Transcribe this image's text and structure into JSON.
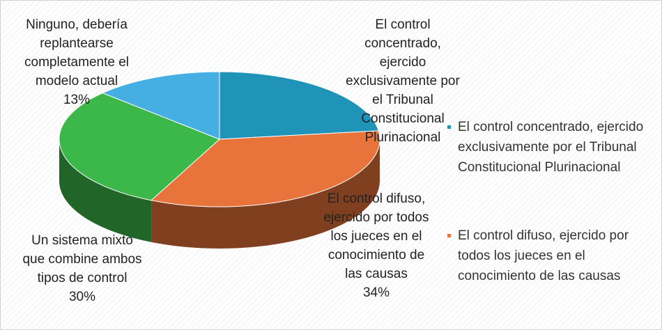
{
  "chart_data": {
    "type": "pie3d",
    "categories": [
      "El control concentrado, ejercido exclusivamente por el Tribunal Constitucional Plurinacional",
      "El control difuso, ejercido por todos los jueces en el conocimiento de las causas",
      "Un sistema mixto que combine ambos tipos de control",
      "Ninguno, debería replantearse completamente el modelo actual"
    ],
    "values": [
      23,
      34,
      30,
      13
    ],
    "value_labels": [
      null,
      "34%",
      "30%",
      "13%"
    ],
    "colors": [
      "#1f93b8",
      "#e8743b",
      "#3cb84a",
      "#45aee3"
    ],
    "legend": "right"
  }
}
